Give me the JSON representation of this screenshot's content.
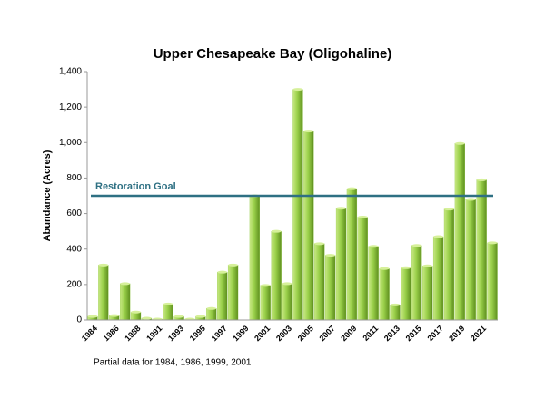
{
  "chart_data": {
    "type": "bar",
    "title": "Upper Chesapeake Bay (Oligohaline)",
    "ylabel": "Abundance (Acres)",
    "note": "Partial data for 1984, 1986, 1999, 2001",
    "categories": [
      "1984",
      null,
      "1986",
      null,
      "1988",
      null,
      "1991",
      null,
      "1993",
      null,
      "1995",
      null,
      "1997",
      null,
      "1999",
      null,
      "2001",
      null,
      "2003",
      null,
      "2005",
      null,
      "2007",
      null,
      "2009",
      null,
      "2011",
      null,
      "2013",
      null,
      "2015",
      null,
      "2017",
      null,
      "2019",
      null,
      "2021",
      null
    ],
    "values": [
      20,
      310,
      25,
      205,
      45,
      10,
      5,
      90,
      20,
      5,
      20,
      65,
      270,
      310,
      null,
      700,
      195,
      500,
      205,
      1300,
      1065,
      430,
      365,
      630,
      740,
      580,
      415,
      290,
      85,
      295,
      420,
      305,
      470,
      625,
      995,
      680,
      790,
      435
    ],
    "color": "#8cc63f",
    "ylim": [
      0,
      1400
    ],
    "yticks": [
      0,
      200,
      400,
      600,
      800,
      {
        "value": 1000,
        "label": "1,000"
      },
      {
        "value": 1200,
        "label": "1,200"
      },
      {
        "value": 1400,
        "label": "1,400"
      }
    ],
    "goal": {
      "label": "Restoration Goal",
      "value": 700,
      "color": "#2e7083"
    }
  }
}
